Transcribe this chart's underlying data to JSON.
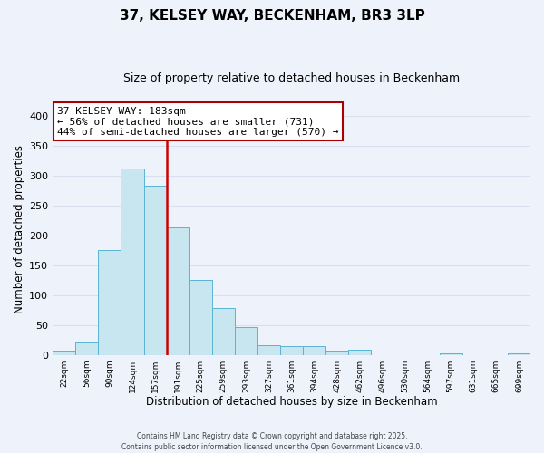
{
  "title": "37, KELSEY WAY, BECKENHAM, BR3 3LP",
  "subtitle": "Size of property relative to detached houses in Beckenham",
  "xlabel": "Distribution of detached houses by size in Beckenham",
  "ylabel": "Number of detached properties",
  "bin_labels": [
    "22sqm",
    "56sqm",
    "90sqm",
    "124sqm",
    "157sqm",
    "191sqm",
    "225sqm",
    "259sqm",
    "293sqm",
    "327sqm",
    "361sqm",
    "394sqm",
    "428sqm",
    "462sqm",
    "496sqm",
    "530sqm",
    "564sqm",
    "597sqm",
    "631sqm",
    "665sqm",
    "699sqm"
  ],
  "bar_values": [
    7,
    21,
    175,
    312,
    283,
    213,
    126,
    79,
    47,
    16,
    15,
    14,
    7,
    9,
    0,
    0,
    0,
    2,
    0,
    0,
    3
  ],
  "bar_color": "#c8e6f0",
  "bar_edge_color": "#5ab4d4",
  "vline_x_idx": 5,
  "vline_color": "#cc0000",
  "annotation_title": "37 KELSEY WAY: 183sqm",
  "annotation_line1": "← 56% of detached houses are smaller (731)",
  "annotation_line2": "44% of semi-detached houses are larger (570) →",
  "annotation_box_color": "#ffffff",
  "annotation_box_edge": "#aa0000",
  "ylim": [
    0,
    420
  ],
  "yticks": [
    0,
    50,
    100,
    150,
    200,
    250,
    300,
    350,
    400
  ],
  "footer1": "Contains HM Land Registry data © Crown copyright and database right 2025.",
  "footer2": "Contains public sector information licensed under the Open Government Licence v3.0.",
  "bg_color": "#eef2fb",
  "grid_color": "#d8e0f0",
  "title_fontsize": 11,
  "subtitle_fontsize": 9
}
